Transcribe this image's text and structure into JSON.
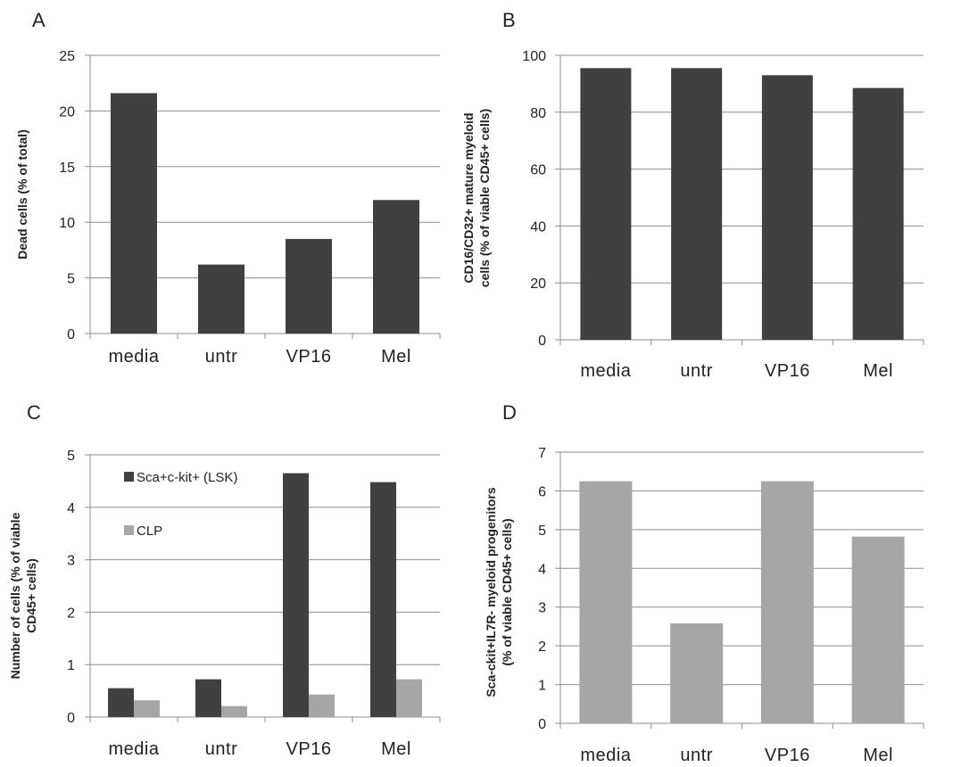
{
  "chart_data": [
    {
      "panel": "A",
      "type": "bar",
      "categories": [
        "media",
        "untr",
        "VP16",
        "Mel"
      ],
      "series": [
        {
          "values": [
            21.6,
            6.2,
            8.5,
            12.0
          ]
        }
      ],
      "ylabel": "Dead cells (% of total)",
      "ylim": [
        0,
        25
      ],
      "yticks": [
        0,
        5,
        10,
        15,
        20,
        25
      ],
      "grid": true,
      "colors": [
        "#404040"
      ]
    },
    {
      "panel": "B",
      "type": "bar",
      "categories": [
        "media",
        "untr",
        "VP16",
        "Mel"
      ],
      "series": [
        {
          "values": [
            95.5,
            95.5,
            93.0,
            88.5
          ]
        }
      ],
      "ylabel": [
        "CD16/CD32+ mature myeloid",
        "cells (% of viable  CD45+ cells)"
      ],
      "ylim": [
        0,
        100
      ],
      "yticks": [
        0,
        20,
        40,
        60,
        80,
        100
      ],
      "grid": true,
      "colors": [
        "#404040"
      ]
    },
    {
      "panel": "C",
      "type": "bar",
      "categories": [
        "media",
        "untr",
        "VP16",
        "Mel"
      ],
      "series": [
        {
          "name": "Sca+c-kit+ (LSK)",
          "values": [
            0.55,
            0.72,
            4.65,
            4.48
          ]
        },
        {
          "name": "CLP",
          "values": [
            0.32,
            0.21,
            0.43,
            0.72
          ]
        }
      ],
      "ylabel": [
        "Number of cells (% of viable",
        "CD45+ cells)"
      ],
      "ylim": [
        0,
        5
      ],
      "yticks": [
        0,
        1,
        2,
        3,
        4,
        5
      ],
      "grid": true,
      "legend_position": "top-left",
      "colors": [
        "#404040",
        "#a6a6a6"
      ]
    },
    {
      "panel": "D",
      "type": "bar",
      "categories": [
        "media",
        "untr",
        "VP16",
        "Mel"
      ],
      "series": [
        {
          "values": [
            6.25,
            2.58,
            6.25,
            4.82
          ]
        }
      ],
      "ylabel": [
        "Sca-ckit+IL7R-  myeloid progenitors",
        "(% of viable  CD45+ cells)"
      ],
      "ylim": [
        0,
        7
      ],
      "yticks": [
        0,
        1,
        2,
        3,
        4,
        5,
        6,
        7
      ],
      "grid": true,
      "colors": [
        "#a6a6a6"
      ]
    }
  ]
}
